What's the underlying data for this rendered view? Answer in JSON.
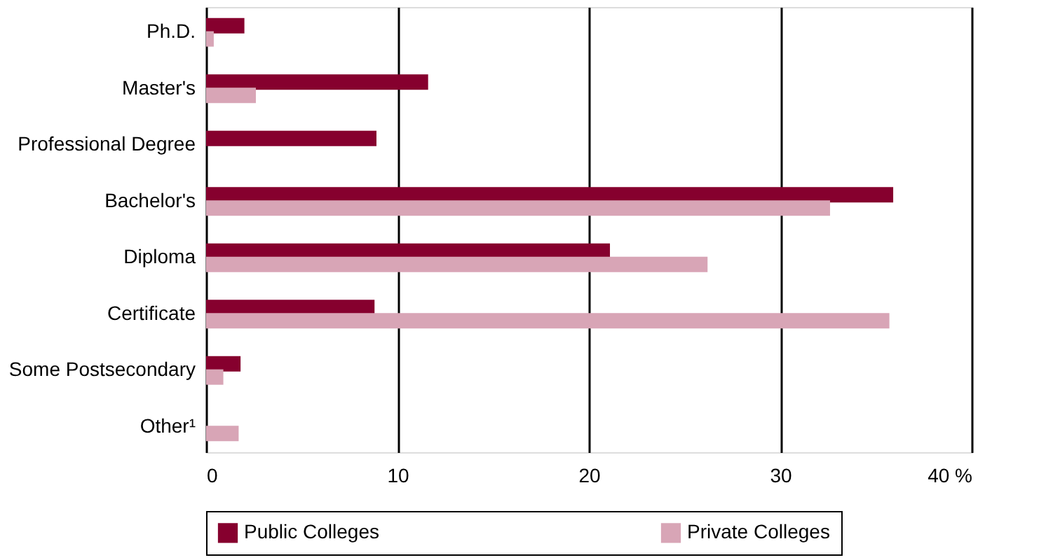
{
  "chart_data": {
    "type": "bar",
    "orientation": "horizontal",
    "categories": [
      "Ph.D.",
      "Master's",
      "Professional Degree",
      "Bachelor's",
      "Diploma",
      "Certificate",
      "Some Postsecondary",
      "Other¹"
    ],
    "series": [
      {
        "name": "Public Colleges",
        "color": "#86002e",
        "values": [
          2.0,
          11.6,
          8.9,
          35.9,
          21.1,
          8.8,
          1.8,
          null
        ]
      },
      {
        "name": "Private Colleges",
        "color": "#d8a5b6",
        "values": [
          0.4,
          2.6,
          null,
          32.6,
          26.2,
          35.7,
          0.9,
          1.7
        ]
      }
    ],
    "xlim": [
      0,
      40
    ],
    "xticks": [
      0,
      10,
      20,
      30,
      {
        "value": 40,
        "label": "40 %"
      }
    ],
    "grid": "x",
    "legend": "bottom"
  }
}
